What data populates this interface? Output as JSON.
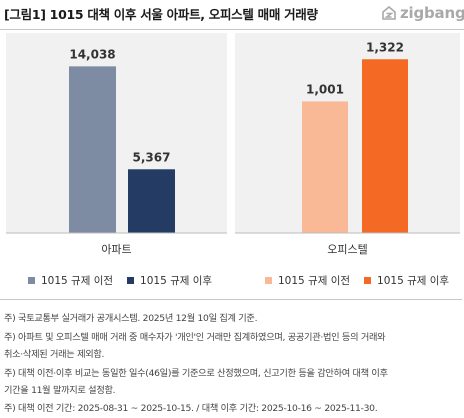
{
  "header": {
    "title": "[그림1] 1015 대책 이후 서울 아파트, 오피스텔 매매 거래량",
    "brand": "zigbang"
  },
  "chart_data": [
    {
      "type": "bar",
      "categories": [
        "아파트"
      ],
      "series": [
        {
          "name": "1015 규제 이전",
          "values": [
            14038
          ],
          "color": "#7e8ca3"
        },
        {
          "name": "1015 규제 이후",
          "values": [
            5367
          ],
          "color": "#243c63"
        }
      ],
      "data_labels": [
        "14,038",
        "5,367"
      ],
      "ylim": [
        0,
        15500
      ],
      "legend": "bottom",
      "grid": false
    },
    {
      "type": "bar",
      "categories": [
        "오피스텔"
      ],
      "series": [
        {
          "name": "1015 규제 이전",
          "values": [
            1001
          ],
          "color": "#f9b896"
        },
        {
          "name": "1015 규제 이후",
          "values": [
            1322
          ],
          "color": "#f46a25"
        }
      ],
      "data_labels": [
        "1,001",
        "1,322"
      ],
      "ylim": [
        0,
        1400
      ],
      "legend": "bottom",
      "grid": false
    }
  ],
  "notes": [
    "주) 국토교통부 실거래가 공개시스템. 2025년 12월 10일 집계 기준.",
    "주) 아파트 및 오피스텔 매매 거래 중 매수자가 '개인'인 거래만 집계하였으며, 공공기관·법인 등의 거래와",
    "취소·삭제된 거래는 제외함.",
    "주) 대책 이전·이후 비교는 동일한 일수(46일)를 기준으로 산정했으며, 신고기한 등을 감안하여 대책 이후",
    "기간을 11월 말까지로 설정함.",
    "주) 대책 이전 기간: 2025-08-31 ~ 2025-10-15. / 대책 이후 기간: 2025-10-16 ~ 2025-11-30."
  ]
}
